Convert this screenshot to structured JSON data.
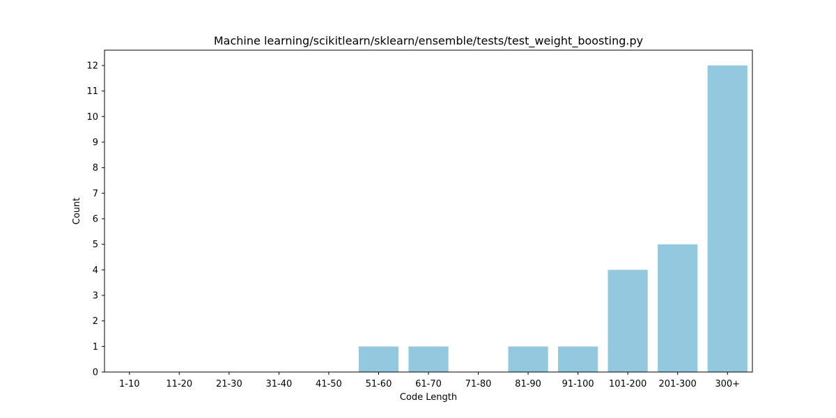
{
  "chart_data": {
    "type": "bar",
    "title": "Machine learning/scikitlearn/sklearn/ensemble/tests/test_weight_boosting.py",
    "xlabel": "Code Length",
    "ylabel": "Count",
    "categories": [
      "1-10",
      "11-20",
      "21-30",
      "31-40",
      "41-50",
      "51-60",
      "61-70",
      "71-80",
      "81-90",
      "91-100",
      "101-200",
      "201-300",
      "300+"
    ],
    "values": [
      0,
      0,
      0,
      0,
      0,
      1,
      1,
      0,
      1,
      1,
      4,
      5,
      12
    ],
    "ylim": [
      0,
      12.6
    ],
    "yticks": [
      0,
      1,
      2,
      3,
      4,
      5,
      6,
      7,
      8,
      9,
      10,
      11,
      12
    ],
    "bar_color": "#92c9de",
    "grid": false
  }
}
